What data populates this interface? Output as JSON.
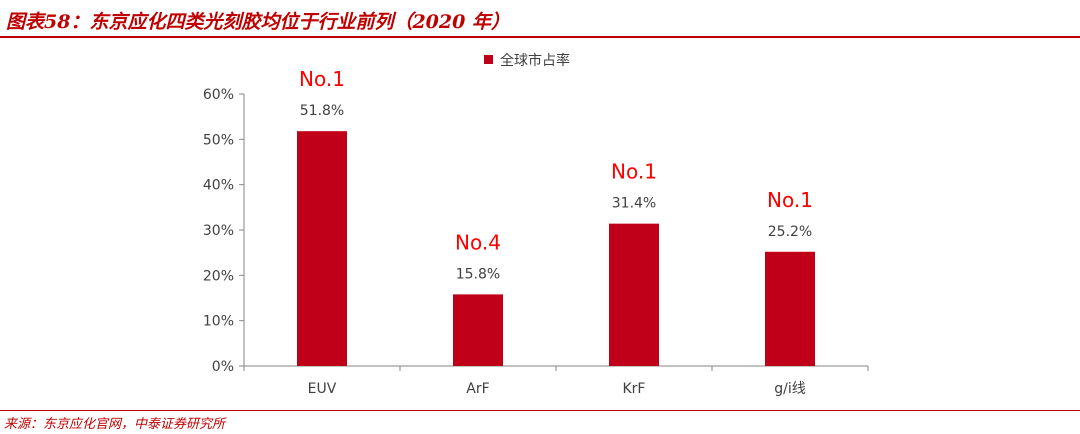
{
  "header": {
    "title": "图表58：东京应化四类光刻胶均位于行业前列（2020 年）"
  },
  "footer": {
    "source": "来源：东京应化官网，中泰证券研究所"
  },
  "colors": {
    "accent": "#c00000",
    "bar": "#c00019",
    "axis": "#868686",
    "text": "#404040",
    "rank": "#ff0000"
  },
  "chart_data": {
    "type": "bar",
    "categories": [
      "EUV",
      "ArF",
      "KrF",
      "g/i线"
    ],
    "series": [
      {
        "name": "全球市占率",
        "values": [
          51.8,
          15.8,
          31.4,
          25.2
        ]
      }
    ],
    "value_labels": [
      "51.8%",
      "15.8%",
      "31.4%",
      "25.2%"
    ],
    "annotations": [
      "No.1",
      "No.4",
      "No.1",
      "No.1"
    ],
    "ylim": [
      0,
      60
    ],
    "yticks": [
      "0%",
      "10%",
      "20%",
      "30%",
      "40%",
      "50%",
      "60%"
    ],
    "legend": "top-center",
    "grid": false
  }
}
